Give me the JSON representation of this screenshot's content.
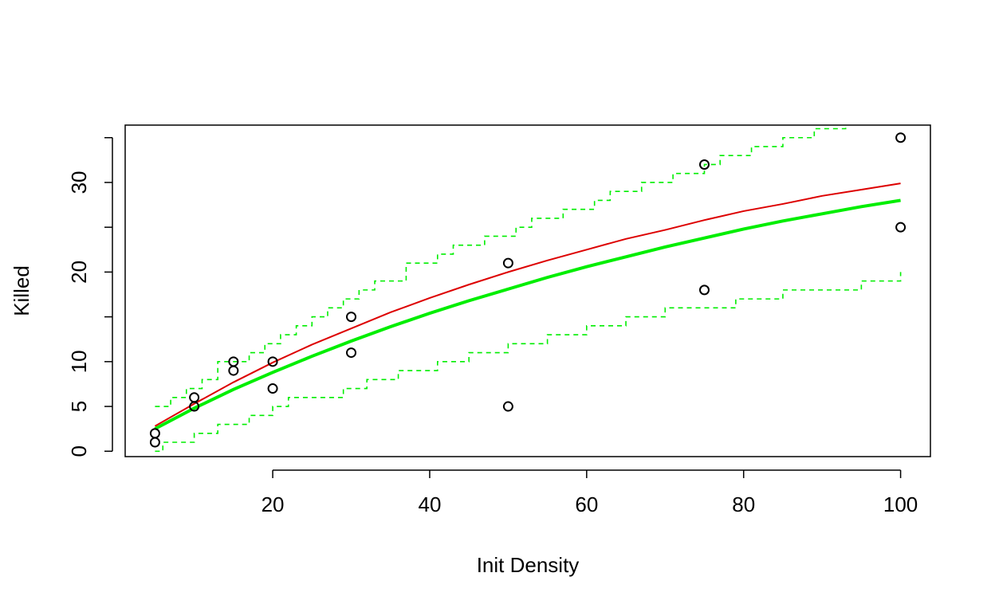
{
  "chart_data": {
    "type": "scatter",
    "title": "",
    "xlabel": "Init Density",
    "ylabel": "Killed",
    "xlim": [
      1.2,
      103.8
    ],
    "ylim": [
      -0.6,
      36.4
    ],
    "x_ticks": [
      20,
      40,
      60,
      80,
      100
    ],
    "y_ticks": [
      0,
      5,
      10,
      15,
      20,
      25,
      30,
      35
    ],
    "y_tick_labels": [
      "0",
      "5",
      "10",
      "",
      "20",
      "",
      "30",
      ""
    ],
    "grid": false,
    "colors": {
      "points": "#000000",
      "fit_red": "#dd0000",
      "fit_green": "#00ee00",
      "bands": "#00ee00"
    },
    "points": [
      {
        "x": 5,
        "y": 1
      },
      {
        "x": 5,
        "y": 2
      },
      {
        "x": 10,
        "y": 5
      },
      {
        "x": 10,
        "y": 6
      },
      {
        "x": 15,
        "y": 9
      },
      {
        "x": 15,
        "y": 10
      },
      {
        "x": 20,
        "y": 7
      },
      {
        "x": 20,
        "y": 10
      },
      {
        "x": 30,
        "y": 11
      },
      {
        "x": 30,
        "y": 15
      },
      {
        "x": 50,
        "y": 5
      },
      {
        "x": 50,
        "y": 21
      },
      {
        "x": 75,
        "y": 18
      },
      {
        "x": 75,
        "y": 32
      },
      {
        "x": 100,
        "y": 25
      },
      {
        "x": 100,
        "y": 35
      }
    ],
    "series": [
      {
        "style": "solid-thin",
        "color": "#dd0000",
        "x": [
          5,
          10,
          15,
          20,
          25,
          30,
          35,
          40,
          45,
          50,
          55,
          60,
          65,
          70,
          75,
          80,
          85,
          90,
          95,
          100
        ],
        "y": [
          2.8,
          5.3,
          7.7,
          9.9,
          11.9,
          13.7,
          15.5,
          17.1,
          18.6,
          20.0,
          21.3,
          22.5,
          23.7,
          24.7,
          25.8,
          26.8,
          27.6,
          28.5,
          29.2,
          29.9
        ]
      },
      {
        "style": "solid-thick",
        "color": "#00ee00",
        "x": [
          5,
          10,
          15,
          20,
          25,
          30,
          35,
          40,
          45,
          50,
          55,
          60,
          65,
          70,
          75,
          80,
          85,
          90,
          95,
          100
        ],
        "y": [
          2.5,
          4.8,
          6.9,
          8.8,
          10.6,
          12.3,
          13.9,
          15.4,
          16.8,
          18.1,
          19.4,
          20.6,
          21.7,
          22.8,
          23.8,
          24.8,
          25.7,
          26.5,
          27.3,
          28.0
        ]
      },
      {
        "style": "dashed-step",
        "color": "#00ee00",
        "x": [
          5,
          7,
          9,
          11,
          13,
          17,
          19,
          21,
          23,
          25,
          27,
          29,
          31,
          33,
          37,
          41,
          43,
          47,
          51,
          53,
          57,
          61,
          63,
          67,
          71,
          75,
          77,
          81,
          85,
          89,
          93,
          97,
          100
        ],
        "y": [
          5,
          6,
          7,
          8,
          10,
          11,
          12,
          13,
          14,
          15,
          16,
          17,
          18,
          19,
          21,
          22,
          23,
          24,
          25,
          26,
          27,
          28,
          29,
          30,
          31,
          32,
          33,
          34,
          35,
          36,
          37,
          38,
          38
        ]
      },
      {
        "style": "dashed-step",
        "color": "#00ee00",
        "x": [
          5,
          6,
          8,
          10,
          13,
          17,
          20,
          22,
          25,
          29,
          32,
          36,
          41,
          45,
          50,
          55,
          60,
          65,
          70,
          75,
          79,
          85,
          90,
          95,
          100
        ],
        "y": [
          0,
          1,
          1,
          2,
          3,
          4,
          5,
          6,
          6,
          7,
          8,
          9,
          10,
          11,
          12,
          13,
          14,
          15,
          16,
          16,
          17,
          18,
          18,
          19,
          20
        ]
      }
    ]
  }
}
